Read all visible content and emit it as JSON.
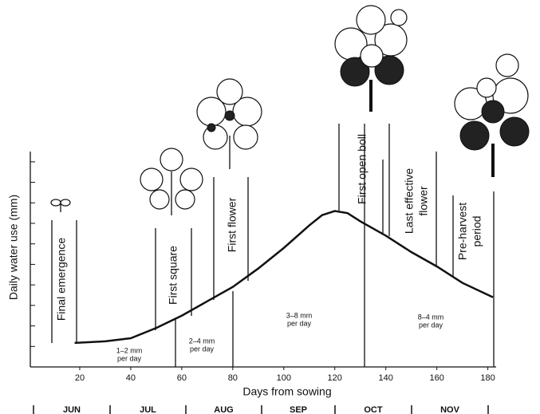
{
  "chart_data": {
    "type": "line",
    "y_label": "Daily water use (mm)",
    "x_label": "Days from sowing",
    "x": [
      18,
      30,
      40,
      50,
      60,
      70,
      80,
      90,
      100,
      110,
      115,
      120,
      125,
      130,
      140,
      150,
      160,
      170,
      182
    ],
    "values": [
      1.17,
      1.25,
      1.4,
      1.9,
      2.5,
      3.2,
      3.9,
      4.8,
      5.8,
      6.9,
      7.4,
      7.6,
      7.5,
      7.1,
      6.4,
      5.6,
      4.9,
      4.1,
      3.4
    ],
    "color": "#111111",
    "xlim": [
      0,
      182
    ],
    "xticks": [
      20,
      40,
      60,
      80,
      100,
      120,
      140,
      160,
      180
    ],
    "ylim": [
      0,
      10.5
    ],
    "yticks": [
      1,
      2,
      3,
      4,
      5,
      6,
      7,
      8,
      9,
      10
    ],
    "stages": [
      [
        "Final emergence"
      ],
      [
        "First square"
      ],
      [
        "First flower"
      ],
      [
        "First open boll"
      ],
      [
        "Last effective",
        "flower"
      ],
      [
        "Pre-harvest",
        "period"
      ]
    ],
    "rates": [
      [
        "1–2 mm",
        "per day"
      ],
      [
        "2–4 mm",
        "per day"
      ],
      [
        "3–8 mm",
        "per day"
      ],
      [
        "8–4 mm",
        "per day"
      ]
    ],
    "months": [
      "JUN",
      "JUL",
      "AUG",
      "SEP",
      "OCT",
      "NOV"
    ]
  }
}
